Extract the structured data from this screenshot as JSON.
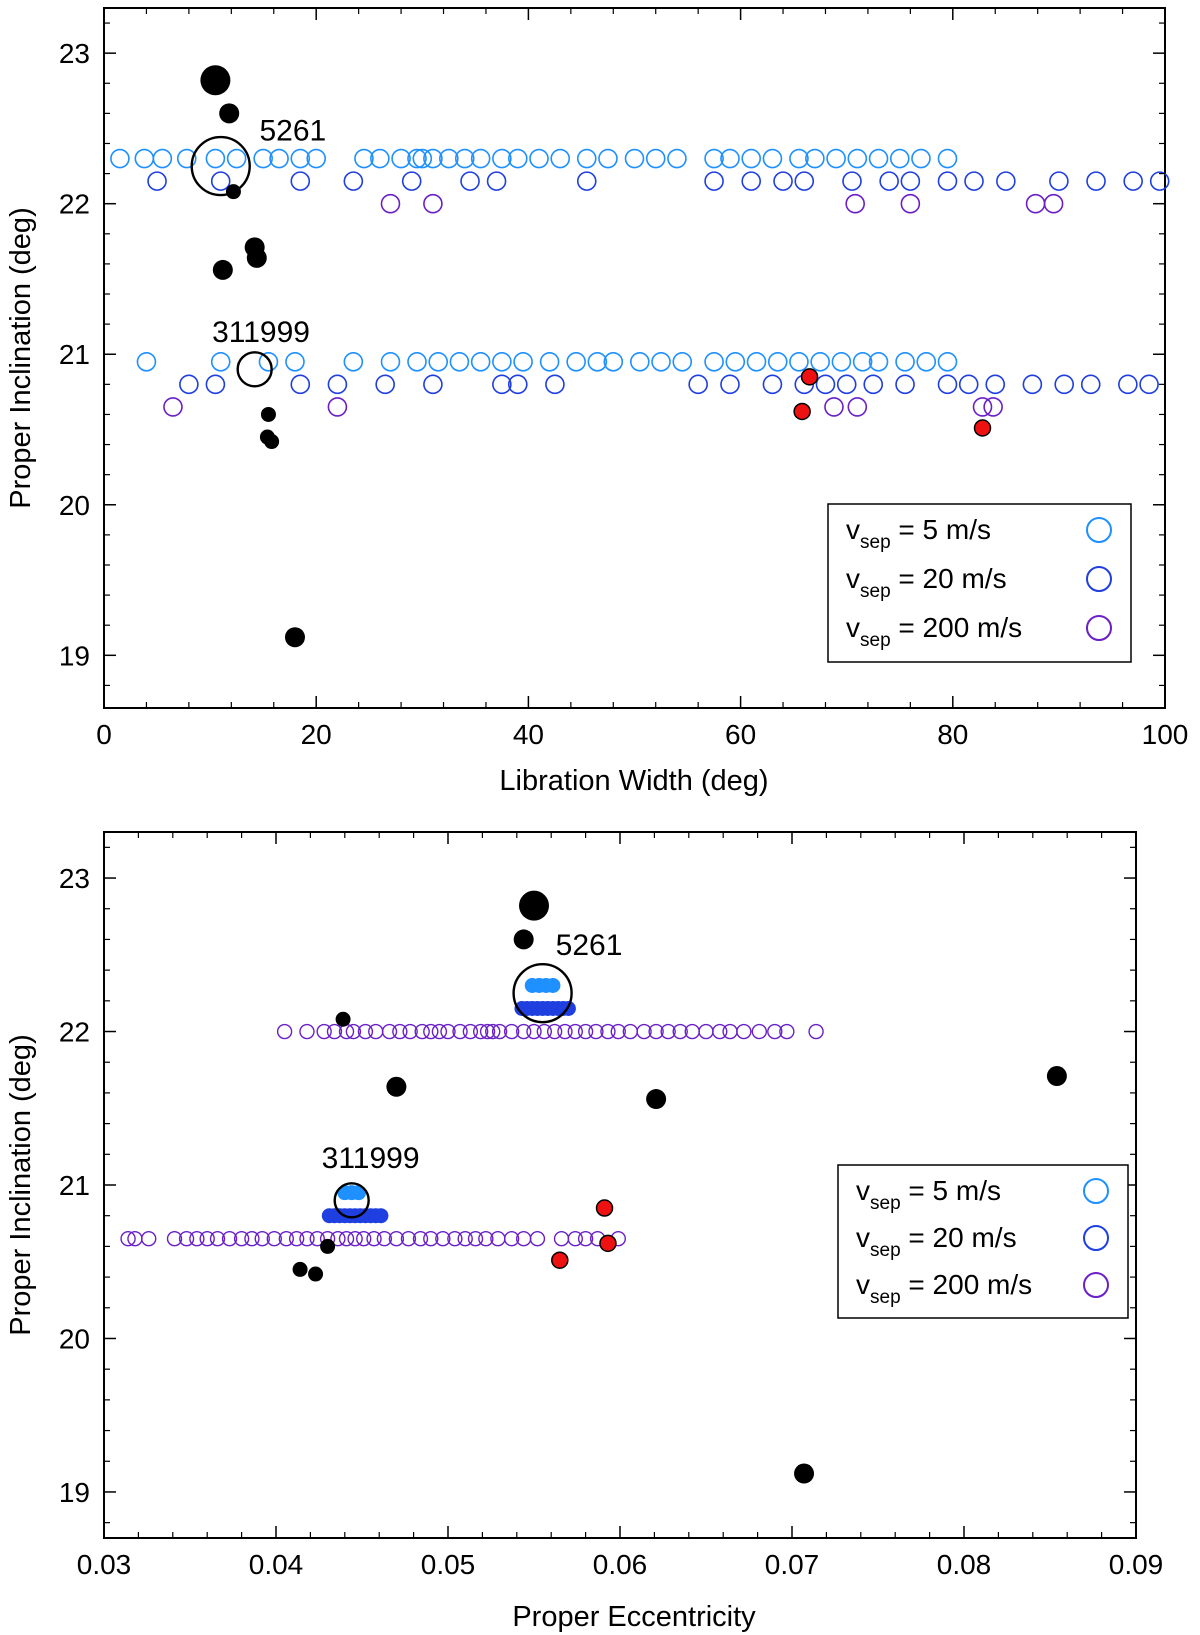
{
  "colors": {
    "v5": "#1e90ff",
    "v20": "#1f3fe0",
    "v200": "#6a1fc7",
    "black": "#000000",
    "red": "#ee1111"
  },
  "legend": {
    "items": [
      {
        "prefix": "v",
        "sub": "sep",
        "rest": " = 5 m/s",
        "color": "#1e90ff"
      },
      {
        "prefix": "v",
        "sub": "sep",
        "rest": " = 20 m/s",
        "color": "#1f3fe0"
      },
      {
        "prefix": "v",
        "sub": "sep",
        "rest": " = 200 m/s",
        "color": "#6a1fc7"
      }
    ]
  },
  "chart_data": [
    {
      "type": "scatter",
      "title": "",
      "xlabel": "Libration Width (deg)",
      "ylabel": "Proper Inclination (deg)",
      "xlim": [
        0,
        100
      ],
      "ylim": [
        18.65,
        23.3
      ],
      "xticks": [
        0,
        20,
        40,
        60,
        80,
        100
      ],
      "xtick_labels": [
        "0",
        "20",
        "40",
        "60",
        "80",
        "100"
      ],
      "yticks": [
        19,
        20,
        21,
        22,
        23
      ],
      "ytick_labels": [
        "19",
        "20",
        "21",
        "22",
        "23"
      ],
      "legend_position": "bottom-right",
      "annotations": [
        {
          "text": "5261",
          "x": 17.8,
          "y": 22.42
        },
        {
          "text": "311999",
          "x": 14.8,
          "y": 21.08
        }
      ],
      "highlight_circles": [
        {
          "name": "5261",
          "x": 11.0,
          "y": 22.25,
          "size": "large"
        },
        {
          "name": "311999",
          "x": 14.2,
          "y": 20.9,
          "size": "medium"
        }
      ],
      "series": [
        {
          "name": "v_sep = 5 m/s",
          "group": "5261",
          "color": "#1e90ff",
          "style": "open",
          "y": 22.3,
          "x": [
            1.5,
            3.8,
            5.5,
            7.8,
            10.5,
            12.5,
            15.0,
            16.5,
            18.5,
            20.0,
            24.5,
            26.0,
            28.0,
            29.5,
            30.0,
            31.0,
            32.5,
            34.0,
            35.5,
            37.5,
            39.0,
            41.0,
            43.0,
            45.5,
            47.5,
            50.0,
            52.0,
            54.0,
            57.5,
            59.0,
            61.0,
            63.0,
            65.5,
            67.0,
            69.0,
            71.0,
            73.0,
            75.0,
            77.0,
            79.5
          ]
        },
        {
          "name": "v_sep = 20 m/s",
          "group": "5261",
          "color": "#1f3fe0",
          "style": "open",
          "y": 22.15,
          "x": [
            5.0,
            11.0,
            18.5,
            23.5,
            29.0,
            34.5,
            37.0,
            45.5,
            57.5,
            61.0,
            64.0,
            66.0,
            70.5,
            74.0,
            76.0,
            79.5,
            82.0,
            85.0,
            90.0,
            93.5,
            97.0,
            99.5
          ]
        },
        {
          "name": "v_sep = 200 m/s",
          "group": "5261",
          "color": "#6a1fc7",
          "style": "open",
          "y": 22.0,
          "x": [
            27.0,
            31.0,
            70.8,
            76.0,
            87.8,
            89.5
          ]
        },
        {
          "name": "v_sep = 5 m/s",
          "group": "311999",
          "color": "#1e90ff",
          "style": "open",
          "y": 20.95,
          "x": [
            4.0,
            11.0,
            15.5,
            18.0,
            23.5,
            27.0,
            29.5,
            31.5,
            33.5,
            35.5,
            37.5,
            39.5,
            42.0,
            44.5,
            46.5,
            48.0,
            50.5,
            52.5,
            54.5,
            57.5,
            59.5,
            61.5,
            63.5,
            65.5,
            67.5,
            69.5,
            71.5,
            73.0,
            75.5,
            77.5,
            79.5
          ]
        },
        {
          "name": "v_sep = 20 m/s",
          "group": "311999",
          "color": "#1f3fe0",
          "style": "open",
          "y": 20.8,
          "x": [
            8.0,
            10.5,
            18.5,
            22.0,
            26.5,
            31.0,
            37.5,
            39.0,
            42.5,
            56.0,
            59.0,
            63.0,
            66.0,
            68.0,
            70.0,
            72.5,
            75.5,
            79.5,
            81.5,
            84.0,
            87.5,
            90.5,
            93.0,
            96.5,
            98.5
          ]
        },
        {
          "name": "v_sep = 200 m/s",
          "group": "311999",
          "color": "#6a1fc7",
          "style": "open",
          "y": 20.65,
          "x": [
            6.5,
            22.0,
            68.8,
            71.0,
            82.8,
            83.8
          ]
        },
        {
          "name": "black asteroids",
          "color": "#000000",
          "style": "filled",
          "x": [
            10.5,
            11.8,
            12.2,
            11.2,
            14.2,
            14.4,
            15.5,
            15.4,
            15.8,
            18.0
          ],
          "y": [
            22.82,
            22.6,
            22.08,
            21.56,
            21.71,
            21.64,
            20.6,
            20.45,
            20.42,
            19.12
          ],
          "size": [
            "xl",
            "m",
            "s",
            "m",
            "m",
            "m",
            "s",
            "s",
            "s",
            "m"
          ]
        },
        {
          "name": "red asteroids",
          "color": "#ee1111",
          "style": "filled-outlined",
          "x": [
            66.5,
            65.8,
            82.8
          ],
          "y": [
            20.85,
            20.62,
            20.51
          ]
        }
      ]
    },
    {
      "type": "scatter",
      "title": "",
      "xlabel": "Proper Eccentricity",
      "ylabel": "Proper Inclination (deg)",
      "xlim": [
        0.03,
        0.09
      ],
      "ylim": [
        18.7,
        23.3
      ],
      "xticks": [
        0.03,
        0.04,
        0.05,
        0.06,
        0.07,
        0.08,
        0.09
      ],
      "xtick_labels": [
        "0.03",
        "0.04",
        "0.05",
        "0.06",
        "0.07",
        "0.08",
        "0.09"
      ],
      "yticks": [
        19,
        20,
        21,
        22,
        23
      ],
      "ytick_labels": [
        "19",
        "20",
        "21",
        "22",
        "23"
      ],
      "legend_position": "bottom-right",
      "annotations": [
        {
          "text": "5261",
          "x": 0.0582,
          "y": 22.5
        },
        {
          "text": "311999",
          "x": 0.0455,
          "y": 21.11
        }
      ],
      "highlight_circles": [
        {
          "name": "5261",
          "x": 0.0555,
          "y": 22.25,
          "size": "large"
        },
        {
          "name": "311999",
          "x": 0.0444,
          "y": 20.9,
          "size": "medium"
        }
      ],
      "series": [
        {
          "name": "v_sep = 5 m/s",
          "group": "5261",
          "color": "#1e90ff",
          "style": "filled-cluster",
          "x": [
            0.0549,
            0.0553,
            0.0557,
            0.0561
          ],
          "y": 22.3
        },
        {
          "name": "v_sep = 20 m/s",
          "group": "5261",
          "color": "#1f3fe0",
          "style": "filled-cluster",
          "x": [
            0.0543,
            0.0546,
            0.0549,
            0.0552,
            0.0555,
            0.0558,
            0.0561,
            0.0564,
            0.0567,
            0.057
          ],
          "y": 22.15
        },
        {
          "name": "v_sep = 200 m/s",
          "group": "5261",
          "color": "#6a1fc7",
          "style": "open-small",
          "y": 22.0,
          "x": [
            0.0405,
            0.0418,
            0.0428,
            0.0434,
            0.0441,
            0.0445,
            0.0452,
            0.0458,
            0.0466,
            0.0472,
            0.0478,
            0.0485,
            0.049,
            0.0495,
            0.05,
            0.0507,
            0.0513,
            0.0519,
            0.0523,
            0.0526,
            0.053,
            0.0537,
            0.0544,
            0.055,
            0.0556,
            0.0562,
            0.0568,
            0.0574,
            0.058,
            0.0586,
            0.0593,
            0.0599,
            0.0606,
            0.0614,
            0.0621,
            0.0628,
            0.0635,
            0.0642,
            0.065,
            0.0658,
            0.0664,
            0.0672,
            0.0681,
            0.069,
            0.0697,
            0.0714
          ]
        },
        {
          "name": "v_sep = 5 m/s",
          "group": "311999",
          "color": "#1e90ff",
          "style": "filled-cluster",
          "x": [
            0.044,
            0.0444,
            0.0448
          ],
          "y": 20.95
        },
        {
          "name": "v_sep = 20 m/s",
          "group": "311999",
          "color": "#1f3fe0",
          "style": "filled-cluster",
          "x": [
            0.0431,
            0.0434,
            0.0437,
            0.044,
            0.0443,
            0.0446,
            0.0449,
            0.0452,
            0.0455,
            0.0458,
            0.0461
          ],
          "y": 20.8
        },
        {
          "name": "v_sep = 200 m/s",
          "group": "311999",
          "color": "#6a1fc7",
          "style": "open-small",
          "y": 20.65,
          "x": [
            0.0314,
            0.0318,
            0.0326,
            0.0341,
            0.0348,
            0.0354,
            0.036,
            0.0366,
            0.0373,
            0.038,
            0.0386,
            0.0392,
            0.0399,
            0.0406,
            0.0412,
            0.0418,
            0.0424,
            0.043,
            0.0436,
            0.0441,
            0.0446,
            0.0451,
            0.0457,
            0.0463,
            0.047,
            0.0477,
            0.0484,
            0.049,
            0.0497,
            0.0504,
            0.051,
            0.0516,
            0.0522,
            0.0529,
            0.0537,
            0.0544,
            0.0552,
            0.0566,
            0.0574,
            0.058,
            0.0587,
            0.0599
          ]
        },
        {
          "name": "black asteroids",
          "color": "#000000",
          "style": "filled",
          "x": [
            0.055,
            0.0544,
            0.0439,
            0.047,
            0.0621,
            0.0854,
            0.043,
            0.0414,
            0.0423,
            0.0707
          ],
          "y": [
            22.82,
            22.6,
            22.08,
            21.64,
            21.56,
            21.71,
            20.6,
            20.45,
            20.42,
            19.12
          ],
          "size": [
            "xl",
            "m",
            "s",
            "m",
            "m",
            "m",
            "s",
            "s",
            "s",
            "m"
          ]
        },
        {
          "name": "red asteroids",
          "color": "#ee1111",
          "style": "filled-outlined",
          "x": [
            0.0591,
            0.0593,
            0.0565
          ],
          "y": [
            20.85,
            20.62,
            20.51
          ]
        }
      ]
    }
  ]
}
